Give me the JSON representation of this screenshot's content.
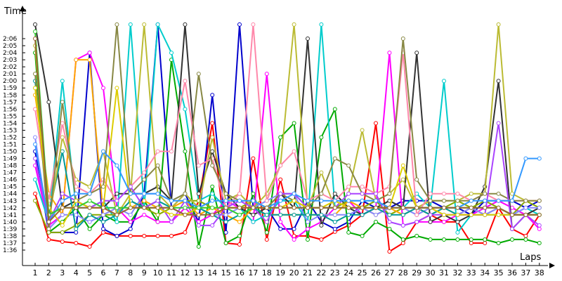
{
  "chart_data": {
    "type": "line",
    "xlabel": "Laps",
    "ylabel": "Time",
    "y_unit": "m:ss",
    "x_categories": [
      "1",
      "2",
      "3",
      "4",
      "5",
      "6",
      "7",
      "8",
      "9",
      "10",
      "11",
      "12",
      "13",
      "14",
      "15",
      "16",
      "17",
      "18",
      "19",
      "20",
      "21",
      "22",
      "23",
      "24",
      "25",
      "26",
      "27",
      "28",
      "29",
      "30",
      "31",
      "32",
      "33",
      "34",
      "35",
      "36",
      "37",
      "38"
    ],
    "y_tick_labels": [
      "1:36",
      "1:37",
      "1:38",
      "1:39",
      "1:40",
      "1:41",
      "1:42",
      "1:43",
      "1:44",
      "1:45",
      "1:46",
      "1:47",
      "1:48",
      "1:49",
      "1:50",
      "1:51",
      "1:52",
      "1:53",
      "1:54",
      "1:55",
      "1:56",
      "1:57",
      "1:58",
      "1:59",
      "2:00",
      "2:01",
      "2:02",
      "2:03",
      "2:04",
      "2:05",
      "2:06"
    ],
    "ylim_seconds": [
      95,
      128
    ],
    "grid": false,
    "legend": "none",
    "note_values": "y values are lap times in seconds; values above 128 run off the top of the plot",
    "series": [
      {
        "color": "#ff0000",
        "values": [
          104,
          97.5,
          97.2,
          97.0,
          96.5,
          98.5,
          98.0,
          98.0,
          98.0,
          98.0,
          98.0,
          98.5,
          103,
          114,
          97.0,
          96.8,
          109,
          97.5,
          106,
          98,
          98,
          97.5,
          98.6,
          99.5,
          101,
          114,
          95.8,
          97,
          100,
          101,
          100,
          100,
          97,
          97,
          102,
          99,
          98,
          101
        ]
      },
      {
        "color": "#0000cc",
        "values": [
          110,
          98.5,
          98.5,
          98.5,
          124,
          99,
          98,
          99,
          104,
          128,
          102,
          104,
          100,
          118,
          98.5,
          128,
          102,
          102,
          99,
          99,
          103,
          100,
          99,
          100,
          103,
          102,
          102,
          103,
          103,
          103,
          102,
          102,
          101,
          103,
          103,
          103,
          102,
          103
        ]
      },
      {
        "color": "#00aa00",
        "values": [
          124,
          98.5,
          100,
          102,
          99,
          101,
          100,
          100,
          103,
          100,
          123,
          110,
          96.5,
          105,
          97,
          98,
          104,
          98.5,
          112,
          114,
          97.5,
          112,
          116,
          98.5,
          98,
          100,
          99,
          97.5,
          98,
          97.5,
          97.5,
          97.5,
          97.5,
          97.5,
          97.0,
          97.5,
          97.5,
          97
        ]
      },
      {
        "color": "#ff00ff",
        "values": [
          108,
          99.5,
          101,
          123,
          124,
          119,
          102,
          100,
          101,
          100,
          100,
          102,
          100,
          101,
          103,
          102,
          100,
          121,
          100,
          97.5,
          99,
          100,
          102,
          103,
          101,
          102,
          124,
          99.5,
          100,
          100,
          100,
          101,
          101,
          102,
          103,
          102,
          101,
          99
        ]
      },
      {
        "color": "#00cccc",
        "values": [
          106,
          100,
          120,
          102,
          102,
          103,
          100,
          128,
          102,
          128,
          124,
          116,
          103,
          104,
          102,
          102,
          100,
          101,
          103,
          103,
          100,
          128,
          102,
          103,
          103,
          103,
          102,
          102,
          104,
          102,
          120,
          98.5,
          101,
          101,
          102,
          101,
          102,
          101
        ]
      },
      {
        "color": "#333333",
        "values": [
          128,
          117,
          102,
          103,
          102,
          102,
          104,
          104,
          104,
          105,
          103,
          128,
          104,
          110,
          104,
          102,
          101,
          102,
          104,
          102,
          126,
          99.5,
          104,
          102,
          101,
          102,
          103,
          102,
          124,
          100,
          101,
          100,
          101,
          105,
          120,
          99,
          101,
          102
        ]
      },
      {
        "color": "#88aa00",
        "values": [
          103,
          98.5,
          98.5,
          99.5,
          101,
          101,
          101,
          103,
          102,
          101,
          102,
          103,
          103,
          102,
          102,
          102,
          103,
          102,
          104,
          104,
          102,
          102,
          102,
          103,
          102,
          103,
          101,
          102,
          102,
          102,
          102,
          103,
          102,
          103,
          102,
          101,
          103,
          102
        ]
      },
      {
        "color": "#ffaa00",
        "values": [
          118,
          104,
          101,
          123,
          123,
          101,
          102,
          102,
          103,
          102,
          102,
          103,
          101,
          102,
          101,
          100,
          102,
          101,
          101,
          101,
          101,
          101,
          101,
          103,
          102,
          101,
          102,
          101,
          102,
          101,
          102,
          101,
          102,
          101,
          102,
          101,
          101,
          101
        ]
      },
      {
        "color": "#8888ff",
        "values": [
          112,
          99,
          101,
          101,
          100,
          101,
          102,
          101,
          104,
          104,
          103,
          104,
          102,
          101,
          101,
          102,
          102,
          103,
          104,
          104,
          100,
          101,
          101,
          101,
          102,
          101,
          102,
          102,
          101,
          102,
          101,
          101,
          102,
          101,
          102,
          101,
          102,
          102
        ]
      },
      {
        "color": "#009999",
        "values": [
          120,
          101,
          110,
          99,
          101,
          100,
          101,
          103,
          102,
          103,
          102,
          101,
          102,
          101,
          100,
          101,
          102,
          101,
          101,
          101,
          101,
          101,
          100,
          101,
          101,
          102,
          101,
          101,
          102,
          101,
          102,
          101,
          101,
          101,
          101,
          101,
          101,
          101
        ]
      },
      {
        "color": "#bbbb33",
        "values": [
          125,
          100,
          112,
          106,
          105,
          110,
          101,
          104,
          128,
          104,
          102,
          104,
          102,
          112,
          103,
          104,
          102,
          104,
          108,
          128,
          102,
          107,
          102,
          104,
          113,
          103,
          104,
          106,
          102,
          103,
          103,
          103,
          104,
          104,
          128,
          104,
          103,
          103
        ]
      },
      {
        "color": "#ff88aa",
        "values": [
          116,
          103,
          114,
          105,
          104,
          106,
          103,
          105,
          107,
          110,
          110,
          120,
          108,
          109,
          102,
          104,
          128,
          103,
          108,
          110,
          103,
          104,
          103,
          105,
          105,
          104,
          105,
          124,
          101,
          104,
          104,
          104,
          103,
          104,
          103,
          103,
          103,
          103
        ]
      },
      {
        "color": "#888844",
        "values": [
          121,
          99,
          117,
          103,
          104,
          105,
          128,
          104,
          106,
          108,
          103,
          104,
          121,
          108,
          104,
          103,
          103,
          102,
          104,
          103,
          102,
          104,
          109,
          108,
          104,
          103,
          104,
          126,
          106,
          103,
          103,
          103,
          103,
          104,
          104,
          103,
          103,
          103
        ]
      },
      {
        "color": "#aa44ff",
        "values": [
          109,
          100,
          104,
          103,
          102,
          103,
          103,
          105,
          102,
          103,
          100,
          103,
          99.5,
          99.5,
          102,
          103,
          102,
          100,
          104,
          104,
          102,
          102,
          102,
          104,
          104,
          104,
          100,
          99.5,
          100,
          101,
          101,
          101,
          101,
          101,
          114,
          99,
          101,
          99.5
        ]
      },
      {
        "color": "#ddcc00",
        "values": [
          119,
          102,
          99.5,
          103,
          102,
          102,
          119,
          102,
          102,
          102,
          101,
          101,
          102,
          102,
          102,
          102,
          102,
          102,
          102,
          103,
          102,
          102,
          103,
          102,
          102,
          102,
          102,
          108,
          102,
          102,
          101,
          101,
          101,
          101,
          101,
          101,
          101,
          101
        ]
      },
      {
        "color": "#3399ff",
        "values": [
          111,
          100,
          103,
          104,
          104,
          110,
          108,
          104,
          104,
          104,
          103,
          103,
          102,
          103,
          103,
          103,
          103,
          102,
          103,
          104,
          103,
          103,
          103,
          103,
          103,
          103,
          102,
          102,
          102,
          102,
          102,
          102,
          103,
          103,
          103,
          103,
          109,
          109
        ]
      },
      {
        "color": "#33cc33",
        "values": [
          127,
          101,
          102,
          102,
          103,
          102,
          102,
          102,
          102,
          102,
          102,
          102,
          102,
          102,
          102,
          101,
          102,
          102,
          102,
          102,
          102,
          102,
          102,
          102,
          102,
          102,
          102,
          102,
          102,
          102,
          102,
          102,
          102,
          102,
          102,
          101,
          101,
          101
        ]
      },
      {
        "color": "#996633",
        "values": [
          126,
          100,
          102,
          102,
          102,
          102,
          101,
          102,
          102,
          102,
          102,
          101,
          101,
          101,
          102,
          102,
          102,
          102,
          102,
          102,
          102,
          102,
          102,
          102,
          102,
          102,
          102,
          102,
          102,
          102,
          102,
          102,
          102,
          102,
          102,
          101,
          101,
          101
        ]
      }
    ]
  }
}
